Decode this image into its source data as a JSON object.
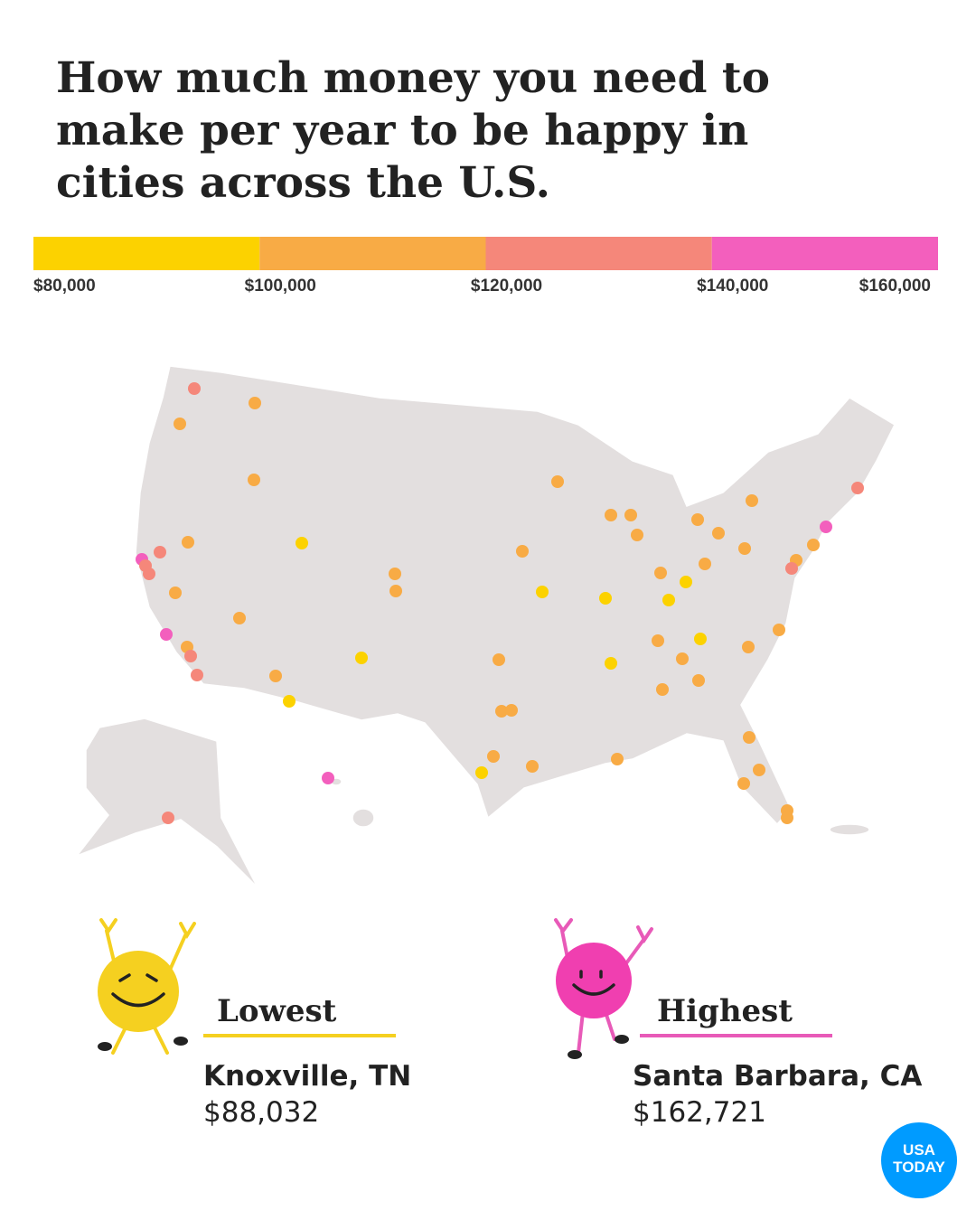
{
  "title_lines": [
    "How much money you need to",
    "make per year to be happy in",
    "cities across the U.S."
  ],
  "legend": {
    "type": "color-scale",
    "xlim": [
      80000,
      160000
    ],
    "ticks": [
      {
        "value": 80000,
        "label": "$80,000"
      },
      {
        "value": 100000,
        "label": "$100,000"
      },
      {
        "value": 120000,
        "label": "$120,000"
      },
      {
        "value": 140000,
        "label": "$140,000"
      },
      {
        "value": 160000,
        "label": "$160,000"
      }
    ],
    "colors": [
      "#fcd200",
      "#f8ab45",
      "#f5877a",
      "#f35fbd"
    ]
  },
  "lowest": {
    "heading": "Lowest",
    "city": "Knoxville, TN",
    "amount": "$88,032",
    "color": "#f5d020"
  },
  "highest": {
    "heading": "Highest",
    "city": "Santa Barbara, CA",
    "amount": "$162,721",
    "color": "#e85ab8"
  },
  "logo": {
    "line1": "USA",
    "line2": "TODAY"
  }
}
